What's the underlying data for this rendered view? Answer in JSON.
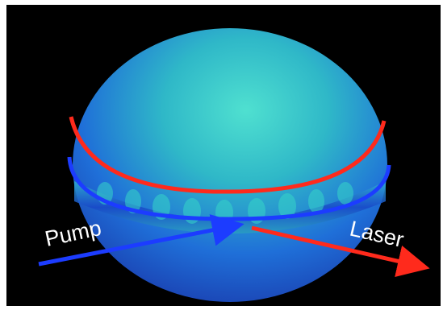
{
  "labels": {
    "pump": "Pump",
    "laser": "Laser"
  }
}
